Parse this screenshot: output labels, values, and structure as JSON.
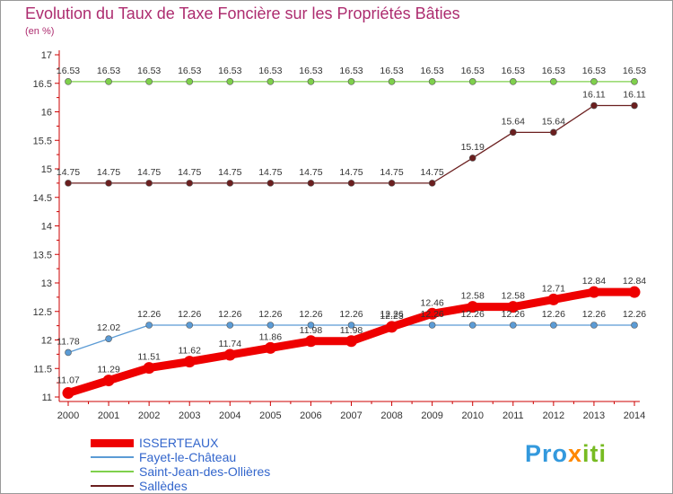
{
  "title": "Evolution du Taux de Taxe Foncière sur les Propriétés Bâties",
  "unit_label": "(en %)",
  "logo_text": "Proxiti",
  "chart_data": {
    "type": "line",
    "title": "Evolution du Taux de Taxe Foncière sur les Propriétés Bâties",
    "ylabel": "(en %)",
    "xlabel": "",
    "x": [
      "2000",
      "2001",
      "2002",
      "2003",
      "2004",
      "2005",
      "2006",
      "2007",
      "2008",
      "2009",
      "2010",
      "2011",
      "2012",
      "2013",
      "2014"
    ],
    "ylim": [
      11,
      17
    ],
    "yticks": [
      "11",
      "11.5",
      "12",
      "12.5",
      "13",
      "13.5",
      "14",
      "14.5",
      "15",
      "15.5",
      "16",
      "16.5",
      "17"
    ],
    "grid": false,
    "legend_position": "bottom-left",
    "series": [
      {
        "name": "ISSERTEAUX",
        "color": "#ee0000",
        "values": [
          11.07,
          11.29,
          11.51,
          11.62,
          11.74,
          11.86,
          11.98,
          11.98,
          12.23,
          12.46,
          12.58,
          12.58,
          12.71,
          12.84,
          12.84
        ],
        "labels": [
          "11.07",
          "11.29",
          "11.51",
          "11.62",
          "11.74",
          "11.86",
          "11.98",
          "11.98",
          "12.23",
          "12.46",
          "12.58",
          "12.58",
          "12.71",
          "12.84",
          "12.84"
        ]
      },
      {
        "name": "Fayet-le-Château",
        "color": "#5b9bd5",
        "values": [
          11.78,
          12.02,
          12.26,
          12.26,
          12.26,
          12.26,
          12.26,
          12.26,
          12.26,
          12.26,
          12.26,
          12.26,
          12.26,
          12.26,
          12.26
        ],
        "labels": [
          "11.78",
          "12.02",
          "12.26",
          "12.26",
          "12.26",
          "12.26",
          "12.26",
          "12.26",
          "12.26",
          "12.26",
          "12.26",
          "12.26",
          "12.26",
          "12.26",
          "12.26"
        ]
      },
      {
        "name": "Saint-Jean-des-Ollières",
        "color": "#7fd04c",
        "values": [
          16.53,
          16.53,
          16.53,
          16.53,
          16.53,
          16.53,
          16.53,
          16.53,
          16.53,
          16.53,
          16.53,
          16.53,
          16.53,
          16.53,
          16.53
        ],
        "labels": [
          "16.53",
          "16.53",
          "16.53",
          "16.53",
          "16.53",
          "16.53",
          "16.53",
          "16.53",
          "16.53",
          "16.53",
          "16.53",
          "16.53",
          "16.53",
          "16.53",
          "16.53"
        ]
      },
      {
        "name": "Sallèdes",
        "color": "#6b1f1f",
        "values": [
          14.75,
          14.75,
          14.75,
          14.75,
          14.75,
          14.75,
          14.75,
          14.75,
          14.75,
          14.75,
          15.19,
          15.64,
          15.64,
          16.11,
          16.11
        ],
        "labels": [
          "14.75",
          "14.75",
          "14.75",
          "14.75",
          "14.75",
          "14.75",
          "14.75",
          "14.75",
          "14.75",
          "14.75",
          "15.19",
          "15.64",
          "15.64",
          "16.11",
          "16.11"
        ]
      }
    ]
  }
}
